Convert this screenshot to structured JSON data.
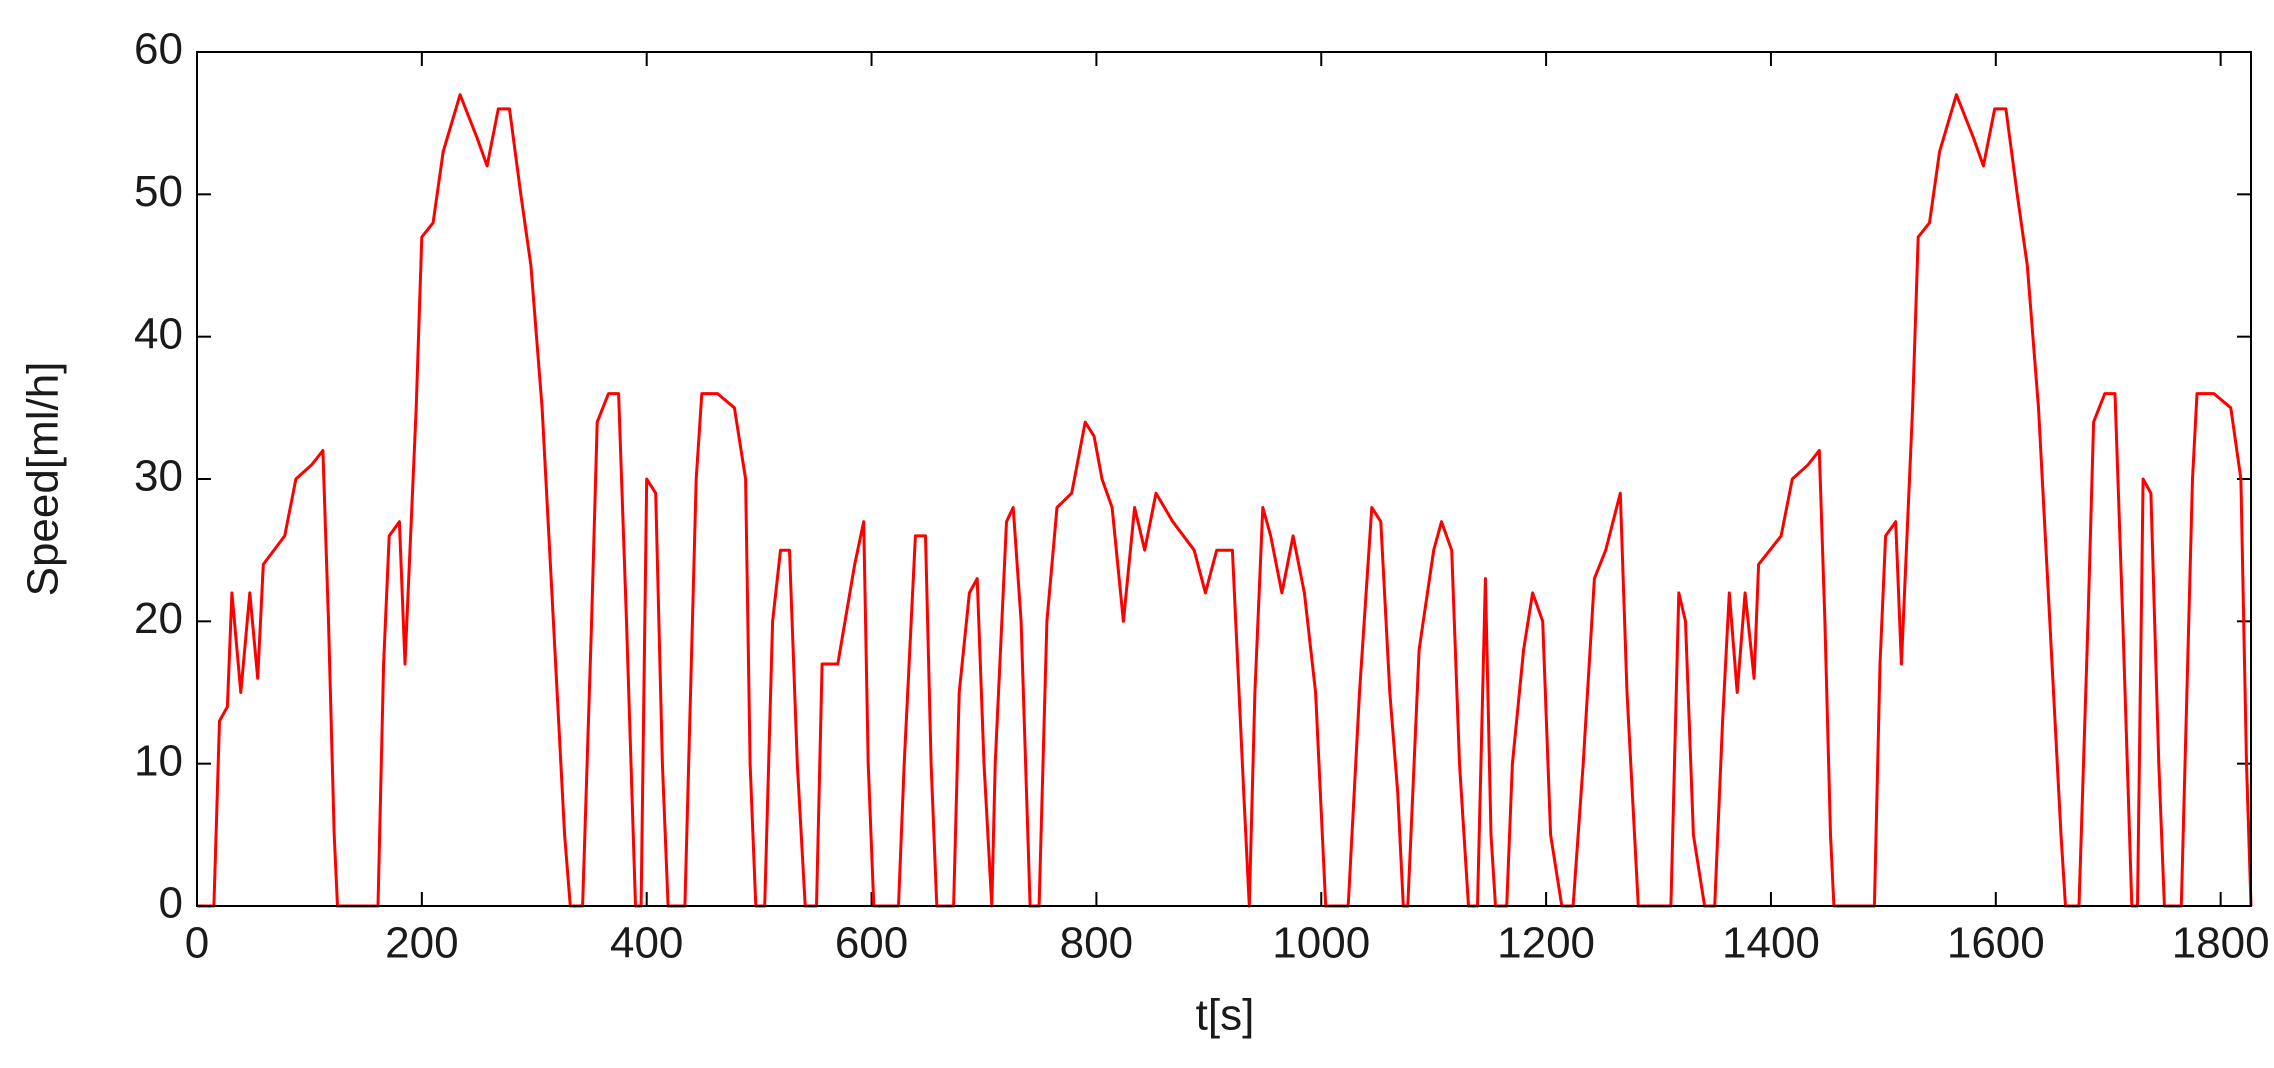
{
  "chart_data": {
    "type": "line",
    "x_label": "t[s]",
    "y_label": "Speed[ml/h]",
    "color": "#ff0000",
    "x": [
      0,
      15,
      20,
      27,
      31,
      39,
      47,
      54,
      59,
      78,
      88,
      102,
      112,
      117,
      122,
      125,
      161,
      166,
      171,
      180,
      185,
      195,
      200,
      210,
      219,
      234,
      249,
      258,
      268,
      278,
      288,
      297,
      307,
      317,
      327,
      332,
      343,
      351,
      356,
      366,
      375,
      382,
      390,
      395,
      400,
      408,
      414,
      419,
      434,
      444,
      449,
      463,
      478,
      488,
      492,
      497,
      505,
      512,
      519,
      527,
      534,
      541,
      551,
      556,
      570,
      585,
      593,
      597,
      602,
      624,
      629,
      639,
      648,
      653,
      658,
      673,
      678,
      687,
      694,
      700,
      707,
      710,
      720,
      726,
      733,
      741,
      749,
      756,
      765,
      778,
      790,
      798,
      805,
      814,
      824,
      834,
      843,
      853,
      868,
      887,
      897,
      907,
      921,
      931,
      936,
      941,
      948,
      955,
      965,
      975,
      985,
      995,
      1004,
      1024,
      1034,
      1045,
      1053,
      1061,
      1068,
      1073,
      1077,
      1087,
      1100,
      1107,
      1116,
      1123,
      1131,
      1139,
      1146,
      1151,
      1155,
      1165,
      1170,
      1180,
      1188,
      1197,
      1204,
      1214,
      1224,
      1233,
      1243,
      1253,
      1266,
      1272,
      1282,
      1311,
      1318,
      1324,
      1331,
      1341,
      1350,
      1357,
      1363,
      1370,
      1377,
      1385,
      1389,
      1409,
      1419,
      1433,
      1443,
      1448,
      1453,
      1456,
      1492,
      1497,
      1502,
      1511,
      1516,
      1526,
      1531,
      1541,
      1550,
      1565,
      1580,
      1589,
      1599,
      1609,
      1619,
      1628,
      1638,
      1648,
      1658,
      1662,
      1674,
      1682,
      1687,
      1697,
      1706,
      1713,
      1721,
      1726,
      1731,
      1738,
      1745,
      1750,
      1765,
      1775,
      1779,
      1794,
      1809,
      1818,
      1823,
      1827
    ],
    "values": [
      0,
      0,
      13,
      14,
      22,
      15,
      22,
      16,
      24,
      26,
      30,
      31,
      32,
      20,
      5,
      0,
      0,
      17,
      26,
      27,
      17,
      35,
      47,
      48,
      53,
      57,
      54,
      52,
      56,
      56,
      50,
      45,
      35,
      20,
      5,
      0,
      0,
      20,
      34,
      36,
      36,
      20,
      0,
      0,
      30,
      29,
      10,
      0,
      0,
      30,
      36,
      36,
      35,
      30,
      10,
      0,
      0,
      20,
      25,
      25,
      10,
      0,
      0,
      17,
      17,
      24,
      27,
      10,
      0,
      0,
      10,
      26,
      26,
      10,
      0,
      0,
      15,
      22,
      23,
      10,
      0,
      10,
      27,
      28,
      20,
      0,
      0,
      20,
      28,
      29,
      34,
      33,
      30,
      28,
      20,
      28,
      25,
      29,
      27,
      25,
      22,
      25,
      25,
      8,
      0,
      15,
      28,
      26,
      22,
      26,
      22,
      15,
      0,
      0,
      15,
      28,
      27,
      15,
      8,
      0,
      0,
      18,
      25,
      27,
      25,
      10,
      0,
      0,
      23,
      5,
      0,
      0,
      10,
      18,
      22,
      20,
      5,
      0,
      0,
      10,
      23,
      25,
      29,
      15,
      0,
      0,
      22,
      20,
      5,
      0,
      0,
      13,
      22,
      15,
      22,
      16,
      24,
      26,
      30,
      31,
      32,
      20,
      5,
      0,
      0,
      17,
      26,
      27,
      17,
      35,
      47,
      48,
      53,
      57,
      54,
      52,
      56,
      56,
      50,
      45,
      35,
      20,
      5,
      0,
      0,
      20,
      34,
      36,
      36,
      20,
      0,
      0,
      30,
      29,
      10,
      0,
      0,
      30,
      36,
      36,
      35,
      30,
      10,
      0
    ],
    "xlim": [
      0,
      1827
    ],
    "ylim": [
      0,
      60
    ],
    "xticks": [
      0,
      200,
      400,
      600,
      800,
      1000,
      1200,
      1400,
      1600,
      1800
    ],
    "yticks": [
      0,
      10,
      20,
      30,
      40,
      50,
      60
    ]
  }
}
